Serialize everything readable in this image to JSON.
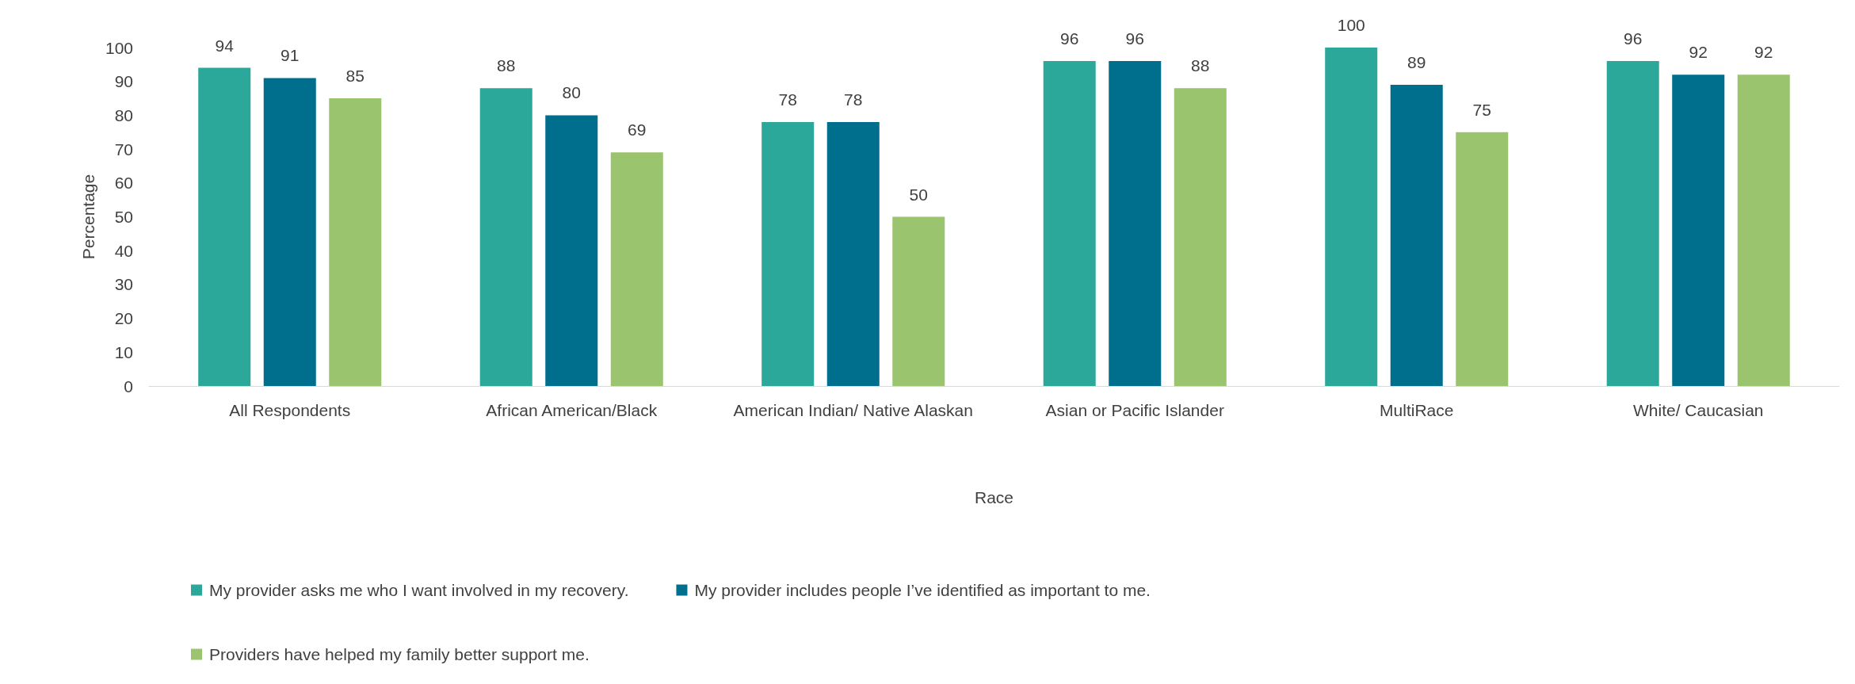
{
  "chart_data": {
    "type": "bar",
    "xlabel": "Race",
    "ylabel": "Percentage",
    "categories": [
      "All Respondents",
      "African American/Black",
      "American Indian/ Native Alaskan",
      "Asian or Pacific Islander",
      "MultiRace",
      "White/ Caucasian"
    ],
    "series": [
      {
        "name": "My provider asks me who I want involved in my recovery.",
        "color": "#2ca89a",
        "values": [
          94,
          88,
          78,
          96,
          100,
          96
        ]
      },
      {
        "name": "My provider includes people I’ve identified as important to me.",
        "color": "#006f8e",
        "values": [
          91,
          80,
          78,
          96,
          89,
          92
        ]
      },
      {
        "name": "Providers have helped my family better support me.",
        "color": "#9bc46e",
        "values": [
          85,
          69,
          50,
          88,
          75,
          92
        ]
      }
    ],
    "ylim": [
      0,
      100
    ],
    "yticks": [
      0,
      10,
      20,
      30,
      40,
      50,
      60,
      70,
      80,
      90,
      100
    ],
    "grid": false,
    "legend": "bottom",
    "data_labels": true
  }
}
